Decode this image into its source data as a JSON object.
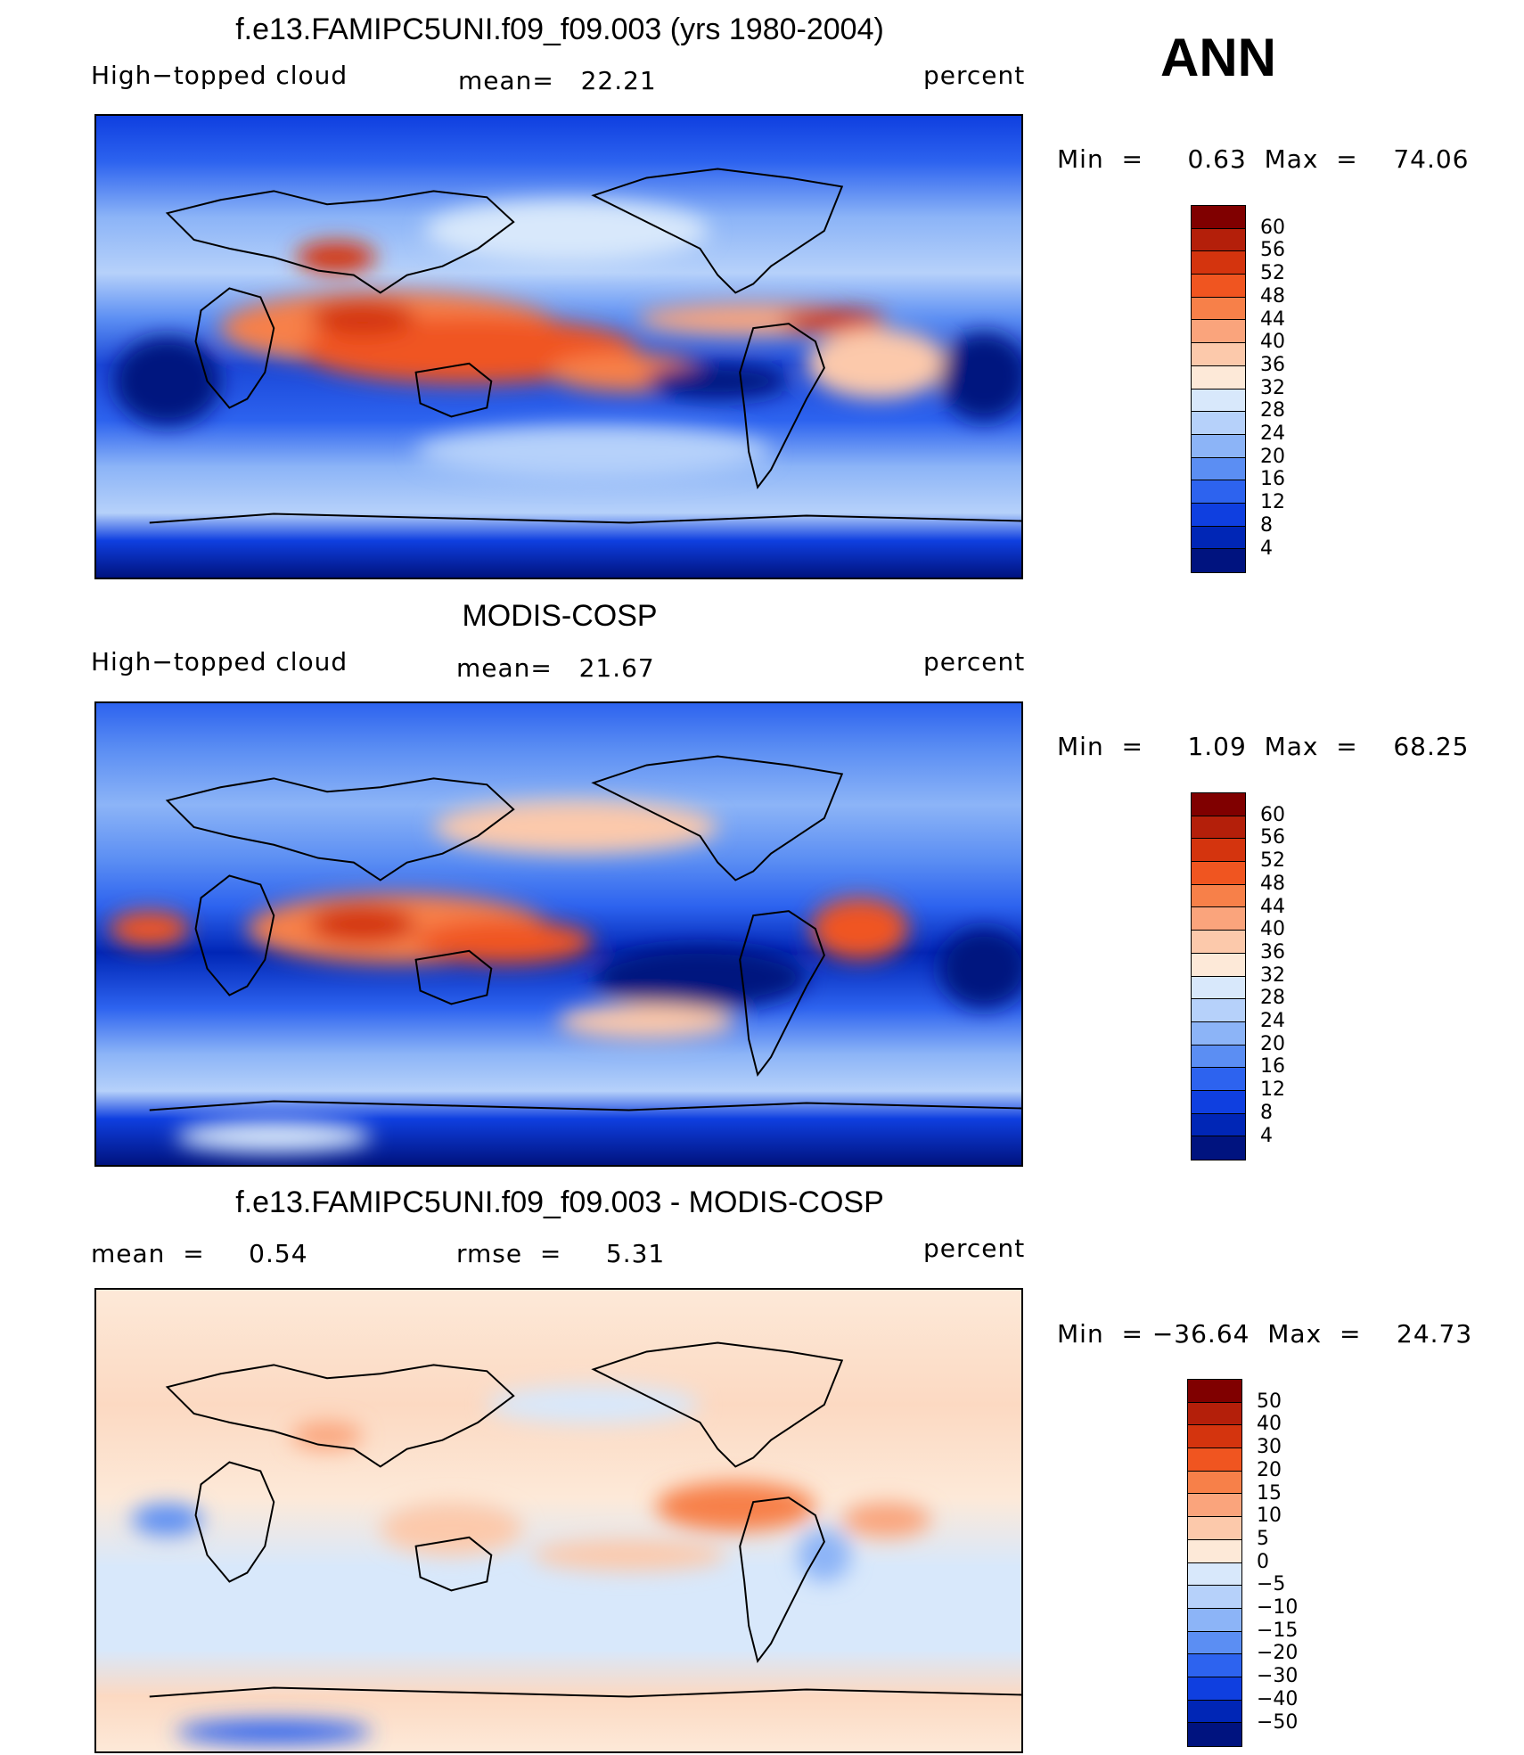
{
  "season": "ANN",
  "panels": [
    {
      "title": "f.e13.FAMIPC5UNI.f09_f09.003 (yrs 1980-2004)",
      "left_label": "High−topped cloud",
      "center_label": "mean=   22.21",
      "right_label": "percent",
      "minmax": "Min  =     0.63  Max  =    74.06",
      "colorbar": {
        "labels": [
          "60",
          "56",
          "52",
          "48",
          "44",
          "40",
          "36",
          "32",
          "28",
          "24",
          "20",
          "16",
          "12",
          "8",
          "4"
        ],
        "colors": [
          "#800000",
          "#b41f0a",
          "#d4340e",
          "#f05520",
          "#f78049",
          "#faa47c",
          "#fcc9ab",
          "#fde9d8",
          "#d8e8fb",
          "#b6d1fa",
          "#8cb4f7",
          "#5b8ef3",
          "#2d63ef",
          "#0f3fe0",
          "#0026b6",
          "#00137f"
        ]
      }
    },
    {
      "title": "MODIS-COSP",
      "left_label": "High−topped cloud",
      "center_label": "mean=   21.67",
      "right_label": "percent",
      "minmax": "Min  =     1.09  Max  =    68.25",
      "colorbar": {
        "labels": [
          "60",
          "56",
          "52",
          "48",
          "44",
          "40",
          "36",
          "32",
          "28",
          "24",
          "20",
          "16",
          "12",
          "8",
          "4"
        ],
        "colors": [
          "#800000",
          "#b41f0a",
          "#d4340e",
          "#f05520",
          "#f78049",
          "#faa47c",
          "#fcc9ab",
          "#fde9d8",
          "#d8e8fb",
          "#b6d1fa",
          "#8cb4f7",
          "#5b8ef3",
          "#2d63ef",
          "#0f3fe0",
          "#0026b6",
          "#00137f"
        ]
      }
    },
    {
      "title": "f.e13.FAMIPC5UNI.f09_f09.003 - MODIS-COSP",
      "left_label": "mean  =     0.54",
      "center_label": "rmse  =     5.31",
      "right_label": "percent",
      "minmax": "Min  = −36.64  Max  =    24.73",
      "colorbar": {
        "labels": [
          "50",
          "40",
          "30",
          "20",
          "15",
          "10",
          "5",
          "0",
          "−5",
          "−10",
          "−15",
          "−20",
          "−30",
          "−40",
          "−50"
        ],
        "colors": [
          "#800000",
          "#b41f0a",
          "#d4340e",
          "#f05520",
          "#f78049",
          "#faa47c",
          "#fcc9ab",
          "#fde9d8",
          "#d8e8fb",
          "#b6d1fa",
          "#8cb4f7",
          "#5b8ef3",
          "#2d63ef",
          "#0f3fe0",
          "#0026b6",
          "#00137f"
        ]
      }
    }
  ]
}
